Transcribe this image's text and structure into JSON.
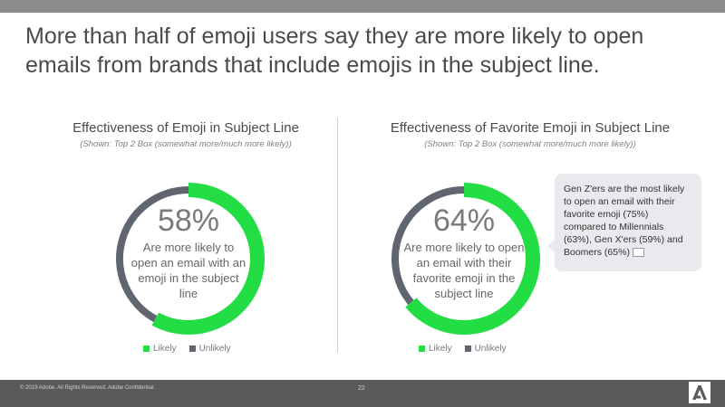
{
  "headline": "More than half of emoji users say they are more likely to open emails from brands that include emojis in the subject line.",
  "footer": {
    "copyright": "© 2019 Adobe. All Rights Reserved. Adobe Confidential.",
    "page_number": "22",
    "logo": "Adobe"
  },
  "callout": {
    "text": "Gen Z'ers are the most likely to open an email with their favorite emoji (75%) compared to Millennials (63%), Gen X'ers (59%) and Boomers (65%)",
    "icon": "envelope-emoji-icon"
  },
  "colors": {
    "likely": "#22dd44",
    "unlikely": "#5f6670"
  },
  "chart_data": [
    {
      "type": "pie",
      "title": "Effectiveness of Emoji in Subject Line",
      "subtitle": "(Shown: Top 2 Box (somewhat more/much more likely))",
      "categories": [
        "Likely",
        "Unlikely"
      ],
      "values": [
        58,
        42
      ],
      "center_value": "58%",
      "center_text": "Are more likely to open an email with an emoji in the subject line",
      "legend": [
        "Likely",
        "Unlikely"
      ],
      "legend_position": "bottom"
    },
    {
      "type": "pie",
      "title": "Effectiveness of Favorite Emoji in Subject Line",
      "subtitle": "(Shown: Top 2 Box (somewhat more/much more likely))",
      "categories": [
        "Likely",
        "Unlikely"
      ],
      "values": [
        64,
        36
      ],
      "center_value": "64%",
      "center_text": "Are more likely to open an email with their favorite emoji in the subject line",
      "legend": [
        "Likely",
        "Unlikely"
      ],
      "legend_position": "bottom"
    }
  ]
}
